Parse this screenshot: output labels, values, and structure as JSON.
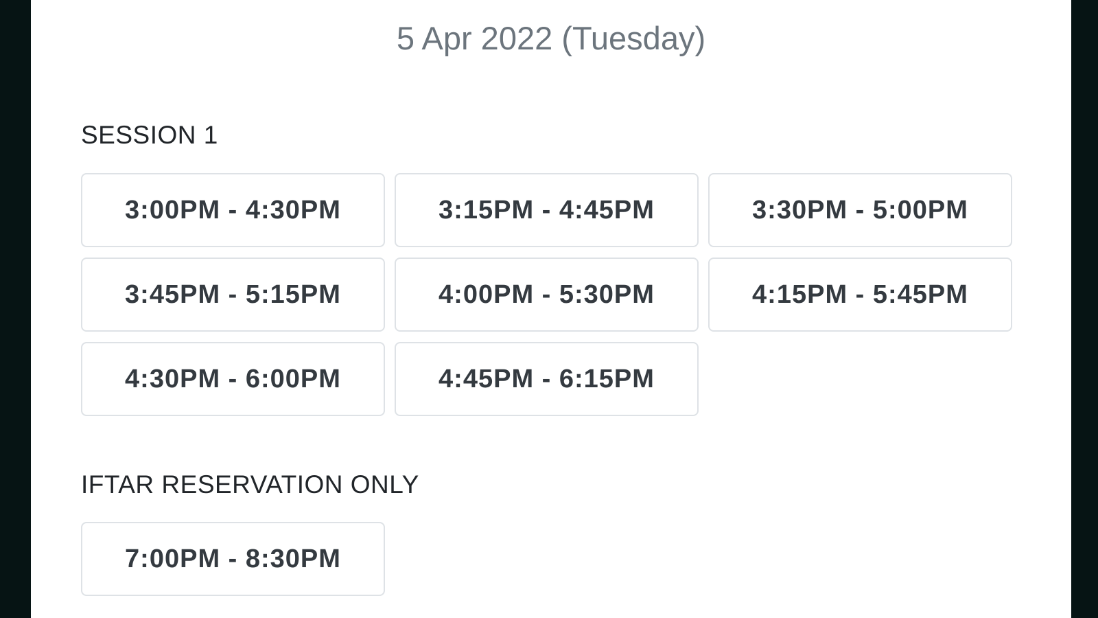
{
  "date": "5 Apr 2022 (Tuesday)",
  "sections": [
    {
      "label": "SESSION 1",
      "slots": [
        "3:00PM - 4:30PM",
        "3:15PM - 4:45PM",
        "3:30PM - 5:00PM",
        "3:45PM - 5:15PM",
        "4:00PM - 5:30PM",
        "4:15PM - 5:45PM",
        "4:30PM - 6:00PM",
        "4:45PM - 6:15PM"
      ]
    },
    {
      "label": "IFTAR RESERVATION ONLY",
      "slots": [
        "7:00PM - 8:30PM"
      ]
    }
  ]
}
